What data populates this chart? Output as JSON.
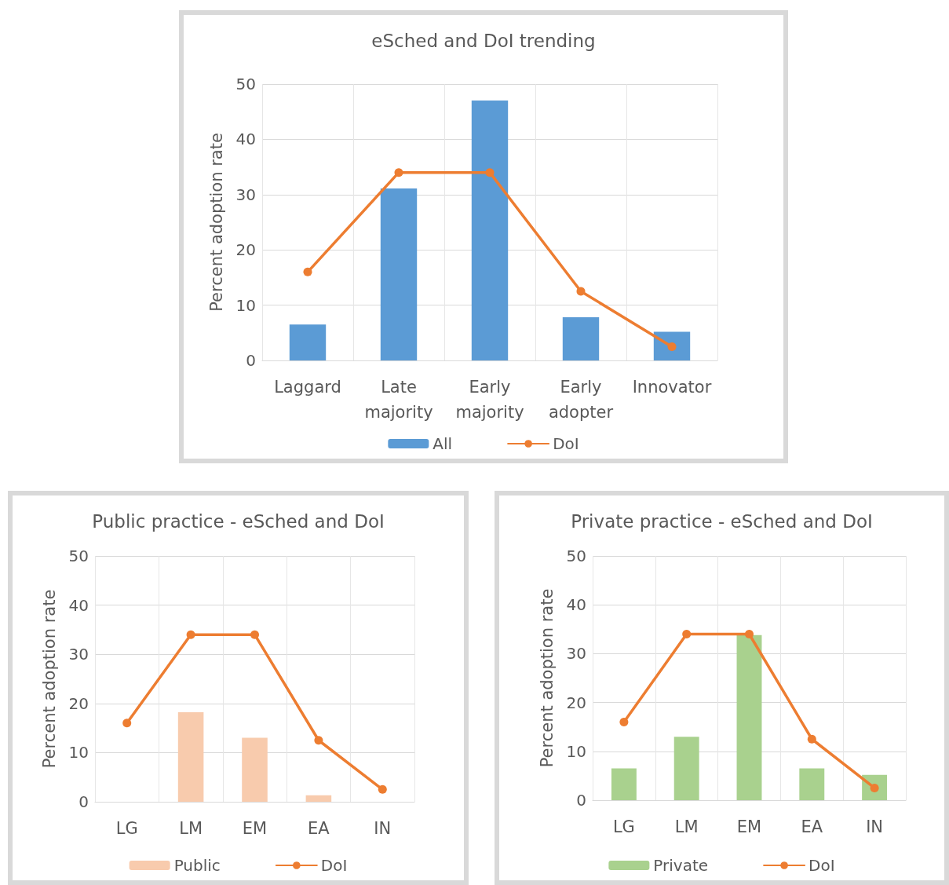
{
  "chart_data": [
    {
      "type": "bar",
      "title": "eSched and DoI trending",
      "ylabel": "Percent adoption rate",
      "categories": [
        "Laggard",
        "Late majority",
        "Early majority",
        "Early adopter",
        "Innovator"
      ],
      "ylim": [
        0,
        50
      ],
      "yticks": [
        0,
        10,
        20,
        30,
        40,
        50
      ],
      "grid": true,
      "legend": "bottom",
      "marker": "circle",
      "series": [
        {
          "name": "All",
          "color": "#5b9bd5",
          "values": [
            6.5,
            31.1,
            47,
            7.8,
            5.2
          ]
        },
        {
          "name": "DoI",
          "type": "line",
          "color": "#ed7d31",
          "values": [
            16,
            34,
            34,
            12.5,
            2.5
          ]
        }
      ]
    },
    {
      "type": "bar",
      "title": "Public practice - eSched and DoI",
      "ylabel": "Percent adoption rate",
      "categories": [
        "LG",
        "LM",
        "EM",
        "EA",
        "IN"
      ],
      "ylim": [
        0,
        50
      ],
      "yticks": [
        0,
        10,
        20,
        30,
        40,
        50
      ],
      "grid": true,
      "legend": "bottom",
      "marker": "circle",
      "series": [
        {
          "name": "Public",
          "color": "#f8cbad",
          "values": [
            0,
            18.2,
            13,
            1.3,
            0
          ]
        },
        {
          "name": "DoI",
          "type": "line",
          "color": "#ed7d31",
          "values": [
            16,
            34,
            34,
            12.5,
            2.5
          ]
        }
      ]
    },
    {
      "type": "bar",
      "title": "Private practice - eSched and DoI",
      "ylabel": "Percent adoption rate",
      "categories": [
        "LG",
        "LM",
        "EM",
        "EA",
        "IN"
      ],
      "ylim": [
        0,
        50
      ],
      "yticks": [
        0,
        10,
        20,
        30,
        40,
        50
      ],
      "grid": true,
      "legend": "bottom",
      "marker": "circle",
      "series": [
        {
          "name": "Private",
          "color": "#a9d18e",
          "values": [
            6.5,
            13,
            33.8,
            6.5,
            5.2
          ]
        },
        {
          "name": "DoI",
          "type": "line",
          "color": "#ed7d31",
          "values": [
            16,
            34,
            34,
            12.5,
            2.5
          ]
        }
      ]
    }
  ]
}
